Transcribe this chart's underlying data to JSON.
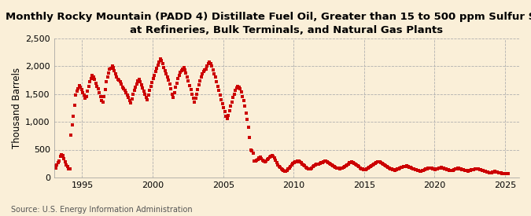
{
  "title": "Monthly Rocky Mountain (PADD 4) Distillate Fuel Oil, Greater than 15 to 500 ppm Sulfur Stocks\nat Refineries, Bulk Terminals, and Natural Gas Plants",
  "ylabel": "Thousand Barrels",
  "source": "Source: U.S. Energy Information Administration",
  "marker_color": "#cc0000",
  "bg_color": "#faefd8",
  "plot_bg_color": "#faefd8",
  "ylim": [
    0,
    2500
  ],
  "yticks": [
    0,
    500,
    1000,
    1500,
    2000,
    2500
  ],
  "ytick_labels": [
    "0",
    "500",
    "1,000",
    "1,500",
    "2,000",
    "2,500"
  ],
  "xticks": [
    1995,
    2000,
    2005,
    2010,
    2015,
    2020,
    2025
  ],
  "title_fontsize": 9.5,
  "label_fontsize": 8.5,
  "tick_fontsize": 8,
  "source_fontsize": 7,
  "marker_size": 9,
  "data": [
    [
      1993,
      1,
      205
    ],
    [
      1993,
      2,
      175
    ],
    [
      1993,
      3,
      220
    ],
    [
      1993,
      4,
      260
    ],
    [
      1993,
      5,
      300
    ],
    [
      1993,
      6,
      380
    ],
    [
      1993,
      7,
      410
    ],
    [
      1993,
      8,
      390
    ],
    [
      1993,
      9,
      340
    ],
    [
      1993,
      10,
      280
    ],
    [
      1993,
      11,
      230
    ],
    [
      1993,
      12,
      195
    ],
    [
      1994,
      1,
      155
    ],
    [
      1994,
      2,
      155
    ],
    [
      1994,
      3,
      760
    ],
    [
      1994,
      4,
      950
    ],
    [
      1994,
      5,
      1100
    ],
    [
      1994,
      6,
      1300
    ],
    [
      1994,
      7,
      1480
    ],
    [
      1994,
      8,
      1550
    ],
    [
      1994,
      9,
      1600
    ],
    [
      1994,
      10,
      1650
    ],
    [
      1994,
      11,
      1630
    ],
    [
      1994,
      12,
      1580
    ],
    [
      1995,
      1,
      1520
    ],
    [
      1995,
      2,
      1480
    ],
    [
      1995,
      3,
      1420
    ],
    [
      1995,
      4,
      1460
    ],
    [
      1995,
      5,
      1550
    ],
    [
      1995,
      6,
      1640
    ],
    [
      1995,
      7,
      1720
    ],
    [
      1995,
      8,
      1780
    ],
    [
      1995,
      9,
      1830
    ],
    [
      1995,
      10,
      1810
    ],
    [
      1995,
      11,
      1770
    ],
    [
      1995,
      12,
      1700
    ],
    [
      1996,
      1,
      1640
    ],
    [
      1996,
      2,
      1590
    ],
    [
      1996,
      3,
      1530
    ],
    [
      1996,
      4,
      1460
    ],
    [
      1996,
      5,
      1390
    ],
    [
      1996,
      6,
      1350
    ],
    [
      1996,
      7,
      1450
    ],
    [
      1996,
      8,
      1580
    ],
    [
      1996,
      9,
      1720
    ],
    [
      1996,
      10,
      1810
    ],
    [
      1996,
      11,
      1880
    ],
    [
      1996,
      12,
      1950
    ],
    [
      1997,
      1,
      1960
    ],
    [
      1997,
      2,
      2000
    ],
    [
      1997,
      3,
      1980
    ],
    [
      1997,
      4,
      1920
    ],
    [
      1997,
      5,
      1860
    ],
    [
      1997,
      6,
      1800
    ],
    [
      1997,
      7,
      1770
    ],
    [
      1997,
      8,
      1750
    ],
    [
      1997,
      9,
      1720
    ],
    [
      1997,
      10,
      1680
    ],
    [
      1997,
      11,
      1630
    ],
    [
      1997,
      12,
      1590
    ],
    [
      1998,
      1,
      1560
    ],
    [
      1998,
      2,
      1520
    ],
    [
      1998,
      3,
      1480
    ],
    [
      1998,
      4,
      1440
    ],
    [
      1998,
      5,
      1390
    ],
    [
      1998,
      6,
      1340
    ],
    [
      1998,
      7,
      1410
    ],
    [
      1998,
      8,
      1490
    ],
    [
      1998,
      9,
      1560
    ],
    [
      1998,
      10,
      1620
    ],
    [
      1998,
      11,
      1680
    ],
    [
      1998,
      12,
      1730
    ],
    [
      1999,
      1,
      1760
    ],
    [
      1999,
      2,
      1720
    ],
    [
      1999,
      3,
      1670
    ],
    [
      1999,
      4,
      1610
    ],
    [
      1999,
      5,
      1550
    ],
    [
      1999,
      6,
      1490
    ],
    [
      1999,
      7,
      1440
    ],
    [
      1999,
      8,
      1400
    ],
    [
      1999,
      9,
      1480
    ],
    [
      1999,
      10,
      1560
    ],
    [
      1999,
      11,
      1640
    ],
    [
      1999,
      12,
      1710
    ],
    [
      2000,
      1,
      1780
    ],
    [
      2000,
      2,
      1840
    ],
    [
      2000,
      3,
      1900
    ],
    [
      2000,
      4,
      1960
    ],
    [
      2000,
      5,
      2020
    ],
    [
      2000,
      6,
      2080
    ],
    [
      2000,
      7,
      2130
    ],
    [
      2000,
      8,
      2100
    ],
    [
      2000,
      9,
      2050
    ],
    [
      2000,
      10,
      1980
    ],
    [
      2000,
      11,
      1920
    ],
    [
      2000,
      12,
      1860
    ],
    [
      2001,
      1,
      1800
    ],
    [
      2001,
      2,
      1750
    ],
    [
      2001,
      3,
      1680
    ],
    [
      2001,
      4,
      1590
    ],
    [
      2001,
      5,
      1500
    ],
    [
      2001,
      6,
      1440
    ],
    [
      2001,
      7,
      1530
    ],
    [
      2001,
      8,
      1620
    ],
    [
      2001,
      9,
      1700
    ],
    [
      2001,
      10,
      1780
    ],
    [
      2001,
      11,
      1840
    ],
    [
      2001,
      12,
      1890
    ],
    [
      2002,
      1,
      1920
    ],
    [
      2002,
      2,
      1950
    ],
    [
      2002,
      3,
      1980
    ],
    [
      2002,
      4,
      1940
    ],
    [
      2002,
      5,
      1880
    ],
    [
      2002,
      6,
      1810
    ],
    [
      2002,
      7,
      1730
    ],
    [
      2002,
      8,
      1650
    ],
    [
      2002,
      9,
      1580
    ],
    [
      2002,
      10,
      1500
    ],
    [
      2002,
      11,
      1420
    ],
    [
      2002,
      12,
      1350
    ],
    [
      2003,
      1,
      1420
    ],
    [
      2003,
      2,
      1500
    ],
    [
      2003,
      3,
      1580
    ],
    [
      2003,
      4,
      1660
    ],
    [
      2003,
      5,
      1740
    ],
    [
      2003,
      6,
      1810
    ],
    [
      2003,
      7,
      1870
    ],
    [
      2003,
      8,
      1910
    ],
    [
      2003,
      9,
      1930
    ],
    [
      2003,
      10,
      1950
    ],
    [
      2003,
      11,
      2010
    ],
    [
      2003,
      12,
      2050
    ],
    [
      2004,
      1,
      2080
    ],
    [
      2004,
      2,
      2050
    ],
    [
      2004,
      3,
      2000
    ],
    [
      2004,
      4,
      1940
    ],
    [
      2004,
      5,
      1870
    ],
    [
      2004,
      6,
      1800
    ],
    [
      2004,
      7,
      1720
    ],
    [
      2004,
      8,
      1640
    ],
    [
      2004,
      9,
      1560
    ],
    [
      2004,
      10,
      1480
    ],
    [
      2004,
      11,
      1400
    ],
    [
      2004,
      12,
      1330
    ],
    [
      2005,
      1,
      1260
    ],
    [
      2005,
      2,
      1180
    ],
    [
      2005,
      3,
      1100
    ],
    [
      2005,
      4,
      1060
    ],
    [
      2005,
      5,
      1120
    ],
    [
      2005,
      6,
      1200
    ],
    [
      2005,
      7,
      1280
    ],
    [
      2005,
      8,
      1360
    ],
    [
      2005,
      9,
      1440
    ],
    [
      2005,
      10,
      1500
    ],
    [
      2005,
      11,
      1560
    ],
    [
      2005,
      12,
      1610
    ],
    [
      2006,
      1,
      1640
    ],
    [
      2006,
      2,
      1620
    ],
    [
      2006,
      3,
      1590
    ],
    [
      2006,
      4,
      1540
    ],
    [
      2006,
      5,
      1460
    ],
    [
      2006,
      6,
      1380
    ],
    [
      2006,
      7,
      1280
    ],
    [
      2006,
      8,
      1160
    ],
    [
      2006,
      9,
      1040
    ],
    [
      2006,
      10,
      900
    ],
    [
      2006,
      11,
      720
    ],
    [
      2006,
      12,
      500
    ],
    [
      2007,
      1,
      480
    ],
    [
      2007,
      2,
      430
    ],
    [
      2007,
      3,
      300
    ],
    [
      2007,
      4,
      290
    ],
    [
      2007,
      5,
      310
    ],
    [
      2007,
      6,
      330
    ],
    [
      2007,
      7,
      350
    ],
    [
      2007,
      8,
      360
    ],
    [
      2007,
      9,
      340
    ],
    [
      2007,
      10,
      310
    ],
    [
      2007,
      11,
      290
    ],
    [
      2007,
      12,
      280
    ],
    [
      2008,
      1,
      300
    ],
    [
      2008,
      2,
      320
    ],
    [
      2008,
      3,
      340
    ],
    [
      2008,
      4,
      360
    ],
    [
      2008,
      5,
      380
    ],
    [
      2008,
      6,
      400
    ],
    [
      2008,
      7,
      380
    ],
    [
      2008,
      8,
      350
    ],
    [
      2008,
      9,
      310
    ],
    [
      2008,
      10,
      270
    ],
    [
      2008,
      11,
      230
    ],
    [
      2008,
      12,
      200
    ],
    [
      2009,
      1,
      180
    ],
    [
      2009,
      2,
      160
    ],
    [
      2009,
      3,
      140
    ],
    [
      2009,
      4,
      120
    ],
    [
      2009,
      5,
      105
    ],
    [
      2009,
      6,
      110
    ],
    [
      2009,
      7,
      130
    ],
    [
      2009,
      8,
      150
    ],
    [
      2009,
      9,
      175
    ],
    [
      2009,
      10,
      200
    ],
    [
      2009,
      11,
      225
    ],
    [
      2009,
      12,
      250
    ],
    [
      2010,
      1,
      265
    ],
    [
      2010,
      2,
      275
    ],
    [
      2010,
      3,
      280
    ],
    [
      2010,
      4,
      290
    ],
    [
      2010,
      5,
      300
    ],
    [
      2010,
      6,
      285
    ],
    [
      2010,
      7,
      265
    ],
    [
      2010,
      8,
      245
    ],
    [
      2010,
      9,
      225
    ],
    [
      2010,
      10,
      205
    ],
    [
      2010,
      11,
      185
    ],
    [
      2010,
      12,
      165
    ],
    [
      2011,
      1,
      155
    ],
    [
      2011,
      2,
      150
    ],
    [
      2011,
      3,
      160
    ],
    [
      2011,
      4,
      175
    ],
    [
      2011,
      5,
      190
    ],
    [
      2011,
      6,
      210
    ],
    [
      2011,
      7,
      225
    ],
    [
      2011,
      8,
      235
    ],
    [
      2011,
      9,
      240
    ],
    [
      2011,
      10,
      245
    ],
    [
      2011,
      11,
      250
    ],
    [
      2011,
      12,
      260
    ],
    [
      2012,
      1,
      270
    ],
    [
      2012,
      2,
      280
    ],
    [
      2012,
      3,
      290
    ],
    [
      2012,
      4,
      295
    ],
    [
      2012,
      5,
      285
    ],
    [
      2012,
      6,
      270
    ],
    [
      2012,
      7,
      255
    ],
    [
      2012,
      8,
      240
    ],
    [
      2012,
      9,
      225
    ],
    [
      2012,
      10,
      210
    ],
    [
      2012,
      11,
      195
    ],
    [
      2012,
      12,
      185
    ],
    [
      2013,
      1,
      175
    ],
    [
      2013,
      2,
      168
    ],
    [
      2013,
      3,
      162
    ],
    [
      2013,
      4,
      158
    ],
    [
      2013,
      5,
      165
    ],
    [
      2013,
      6,
      175
    ],
    [
      2013,
      7,
      185
    ],
    [
      2013,
      8,
      200
    ],
    [
      2013,
      9,
      215
    ],
    [
      2013,
      10,
      230
    ],
    [
      2013,
      11,
      245
    ],
    [
      2013,
      12,
      260
    ],
    [
      2014,
      1,
      270
    ],
    [
      2014,
      2,
      275
    ],
    [
      2014,
      3,
      265
    ],
    [
      2014,
      4,
      250
    ],
    [
      2014,
      5,
      235
    ],
    [
      2014,
      6,
      220
    ],
    [
      2014,
      7,
      205
    ],
    [
      2014,
      8,
      190
    ],
    [
      2014,
      9,
      175
    ],
    [
      2014,
      10,
      160
    ],
    [
      2014,
      11,
      148
    ],
    [
      2014,
      12,
      140
    ],
    [
      2015,
      1,
      135
    ],
    [
      2015,
      2,
      145
    ],
    [
      2015,
      3,
      158
    ],
    [
      2015,
      4,
      170
    ],
    [
      2015,
      5,
      185
    ],
    [
      2015,
      6,
      198
    ],
    [
      2015,
      7,
      210
    ],
    [
      2015,
      8,
      225
    ],
    [
      2015,
      9,
      240
    ],
    [
      2015,
      10,
      255
    ],
    [
      2015,
      11,
      268
    ],
    [
      2015,
      12,
      278
    ],
    [
      2016,
      1,
      285
    ],
    [
      2016,
      2,
      278
    ],
    [
      2016,
      3,
      268
    ],
    [
      2016,
      4,
      255
    ],
    [
      2016,
      5,
      240
    ],
    [
      2016,
      6,
      225
    ],
    [
      2016,
      7,
      210
    ],
    [
      2016,
      8,
      198
    ],
    [
      2016,
      9,
      185
    ],
    [
      2016,
      10,
      170
    ],
    [
      2016,
      11,
      158
    ],
    [
      2016,
      12,
      148
    ],
    [
      2017,
      1,
      140
    ],
    [
      2017,
      2,
      135
    ],
    [
      2017,
      3,
      130
    ],
    [
      2017,
      4,
      138
    ],
    [
      2017,
      5,
      148
    ],
    [
      2017,
      6,
      158
    ],
    [
      2017,
      7,
      168
    ],
    [
      2017,
      8,
      178
    ],
    [
      2017,
      9,
      185
    ],
    [
      2017,
      10,
      190
    ],
    [
      2017,
      11,
      195
    ],
    [
      2017,
      12,
      200
    ],
    [
      2018,
      1,
      205
    ],
    [
      2018,
      2,
      198
    ],
    [
      2018,
      3,
      188
    ],
    [
      2018,
      4,
      178
    ],
    [
      2018,
      5,
      168
    ],
    [
      2018,
      6,
      158
    ],
    [
      2018,
      7,
      150
    ],
    [
      2018,
      8,
      142
    ],
    [
      2018,
      9,
      135
    ],
    [
      2018,
      10,
      128
    ],
    [
      2018,
      11,
      122
    ],
    [
      2018,
      12,
      118
    ],
    [
      2019,
      1,
      115
    ],
    [
      2019,
      2,
      120
    ],
    [
      2019,
      3,
      128
    ],
    [
      2019,
      4,
      138
    ],
    [
      2019,
      5,
      148
    ],
    [
      2019,
      6,
      158
    ],
    [
      2019,
      7,
      165
    ],
    [
      2019,
      8,
      170
    ],
    [
      2019,
      9,
      168
    ],
    [
      2019,
      10,
      162
    ],
    [
      2019,
      11,
      155
    ],
    [
      2019,
      12,
      148
    ],
    [
      2020,
      1,
      142
    ],
    [
      2020,
      2,
      148
    ],
    [
      2020,
      3,
      158
    ],
    [
      2020,
      4,
      168
    ],
    [
      2020,
      5,
      175
    ],
    [
      2020,
      6,
      180
    ],
    [
      2020,
      7,
      175
    ],
    [
      2020,
      8,
      168
    ],
    [
      2020,
      9,
      160
    ],
    [
      2020,
      10,
      152
    ],
    [
      2020,
      11,
      145
    ],
    [
      2020,
      12,
      138
    ],
    [
      2021,
      1,
      132
    ],
    [
      2021,
      2,
      128
    ],
    [
      2021,
      3,
      125
    ],
    [
      2021,
      4,
      132
    ],
    [
      2021,
      5,
      142
    ],
    [
      2021,
      6,
      152
    ],
    [
      2021,
      7,
      160
    ],
    [
      2021,
      8,
      165
    ],
    [
      2021,
      9,
      162
    ],
    [
      2021,
      10,
      155
    ],
    [
      2021,
      11,
      148
    ],
    [
      2021,
      12,
      142
    ],
    [
      2022,
      1,
      136
    ],
    [
      2022,
      2,
      130
    ],
    [
      2022,
      3,
      125
    ],
    [
      2022,
      4,
      120
    ],
    [
      2022,
      5,
      118
    ],
    [
      2022,
      6,
      122
    ],
    [
      2022,
      7,
      128
    ],
    [
      2022,
      8,
      135
    ],
    [
      2022,
      9,
      140
    ],
    [
      2022,
      10,
      145
    ],
    [
      2022,
      11,
      148
    ],
    [
      2022,
      12,
      150
    ],
    [
      2023,
      1,
      152
    ],
    [
      2023,
      2,
      148
    ],
    [
      2023,
      3,
      142
    ],
    [
      2023,
      4,
      135
    ],
    [
      2023,
      5,
      128
    ],
    [
      2023,
      6,
      120
    ],
    [
      2023,
      7,
      112
    ],
    [
      2023,
      8,
      105
    ],
    [
      2023,
      9,
      98
    ],
    [
      2023,
      10,
      92
    ],
    [
      2023,
      11,
      88
    ],
    [
      2023,
      12,
      85
    ],
    [
      2024,
      1,
      90
    ],
    [
      2024,
      2,
      95
    ],
    [
      2024,
      3,
      100
    ],
    [
      2024,
      4,
      105
    ],
    [
      2024,
      5,
      100
    ],
    [
      2024,
      6,
      95
    ],
    [
      2024,
      7,
      90
    ],
    [
      2024,
      8,
      85
    ],
    [
      2024,
      9,
      80
    ],
    [
      2024,
      10,
      75
    ],
    [
      2024,
      11,
      70
    ],
    [
      2024,
      12,
      65
    ],
    [
      2025,
      1,
      70
    ],
    [
      2025,
      2,
      68
    ],
    [
      2025,
      3,
      65
    ]
  ]
}
